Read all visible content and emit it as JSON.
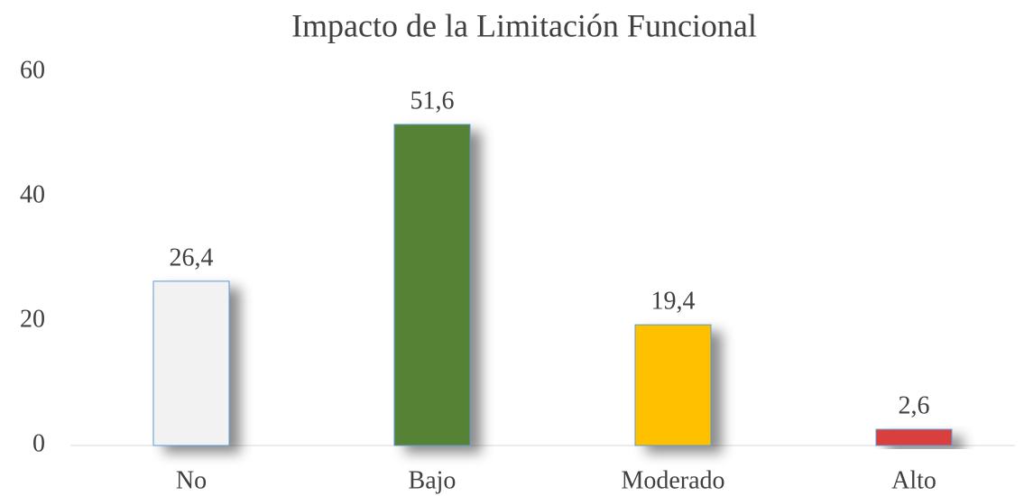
{
  "chart_data": {
    "type": "bar",
    "title": "Impacto de la Limitación Funcional",
    "categories": [
      "No",
      "Bajo",
      "Moderado",
      "Alto"
    ],
    "values": [
      26.4,
      51.6,
      19.4,
      2.6
    ],
    "value_labels": [
      "26,4",
      "51,6",
      "19,4",
      "2,6"
    ],
    "colors": [
      "#f2f2f2",
      "#548235",
      "#ffc000",
      "#d9413e"
    ],
    "edgecolor": "#5b9bd5",
    "ylim": [
      0,
      60
    ],
    "yticks": [
      0,
      20,
      40,
      60
    ],
    "grid": false
  }
}
